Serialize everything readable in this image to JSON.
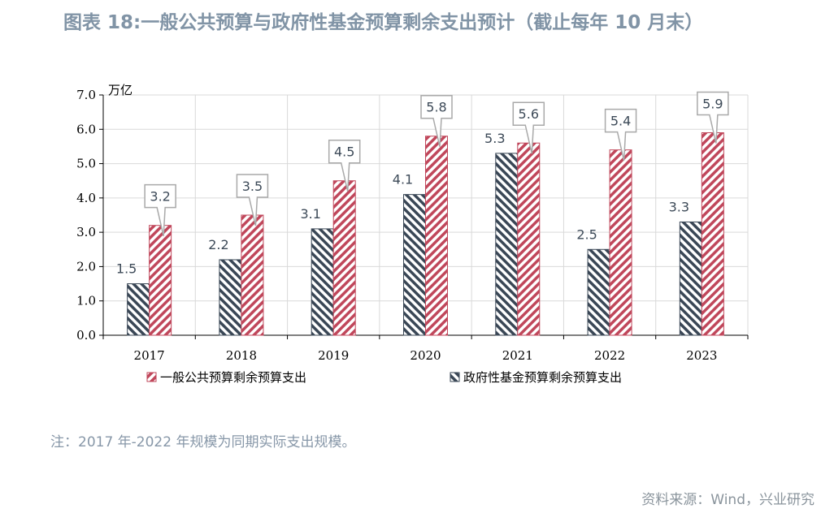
{
  "title": "图表 18:一般公共预算与政府性基金预算剩余支出预计（截止每年 10 月末）",
  "note": "注：2017 年-2022 年规模为同期实际支出规模。",
  "source": "资料来源：Wind，兴业研究",
  "chart_data": {
    "type": "bar",
    "categories": [
      "2017",
      "2018",
      "2019",
      "2020",
      "2021",
      "2022",
      "2023"
    ],
    "series": [
      {
        "name": "政府性基金预算剩余预算支出",
        "values": [
          1.5,
          2.2,
          3.1,
          4.1,
          5.3,
          2.5,
          3.3
        ],
        "color": "#3a4756",
        "pattern": "hatch-dark"
      },
      {
        "name": "一般公共预算剩余预算支出",
        "values": [
          3.2,
          3.5,
          4.5,
          5.8,
          5.6,
          5.4,
          5.9
        ],
        "color": "#c0475b",
        "pattern": "hatch-red"
      }
    ],
    "ylabel": "万亿",
    "ylim": [
      0,
      7
    ],
    "yticks": [
      "0.0",
      "1.0",
      "2.0",
      "3.0",
      "4.0",
      "5.0",
      "6.0",
      "7.0"
    ],
    "grid": true,
    "legend_position": "bottom",
    "legend_order": [
      "一般公共预算剩余预算支出",
      "政府性基金预算剩余预算支出"
    ],
    "data_labels": {
      "政府性基金预算剩余预算支出": [
        "1.5",
        "2.2",
        "3.1",
        "4.1",
        "5.3",
        "2.5",
        "3.3"
      ],
      "一般公共预算剩余预算支出": [
        "3.2",
        "3.5",
        "4.5",
        "5.8",
        "5.6",
        "5.4",
        "5.9"
      ]
    }
  }
}
